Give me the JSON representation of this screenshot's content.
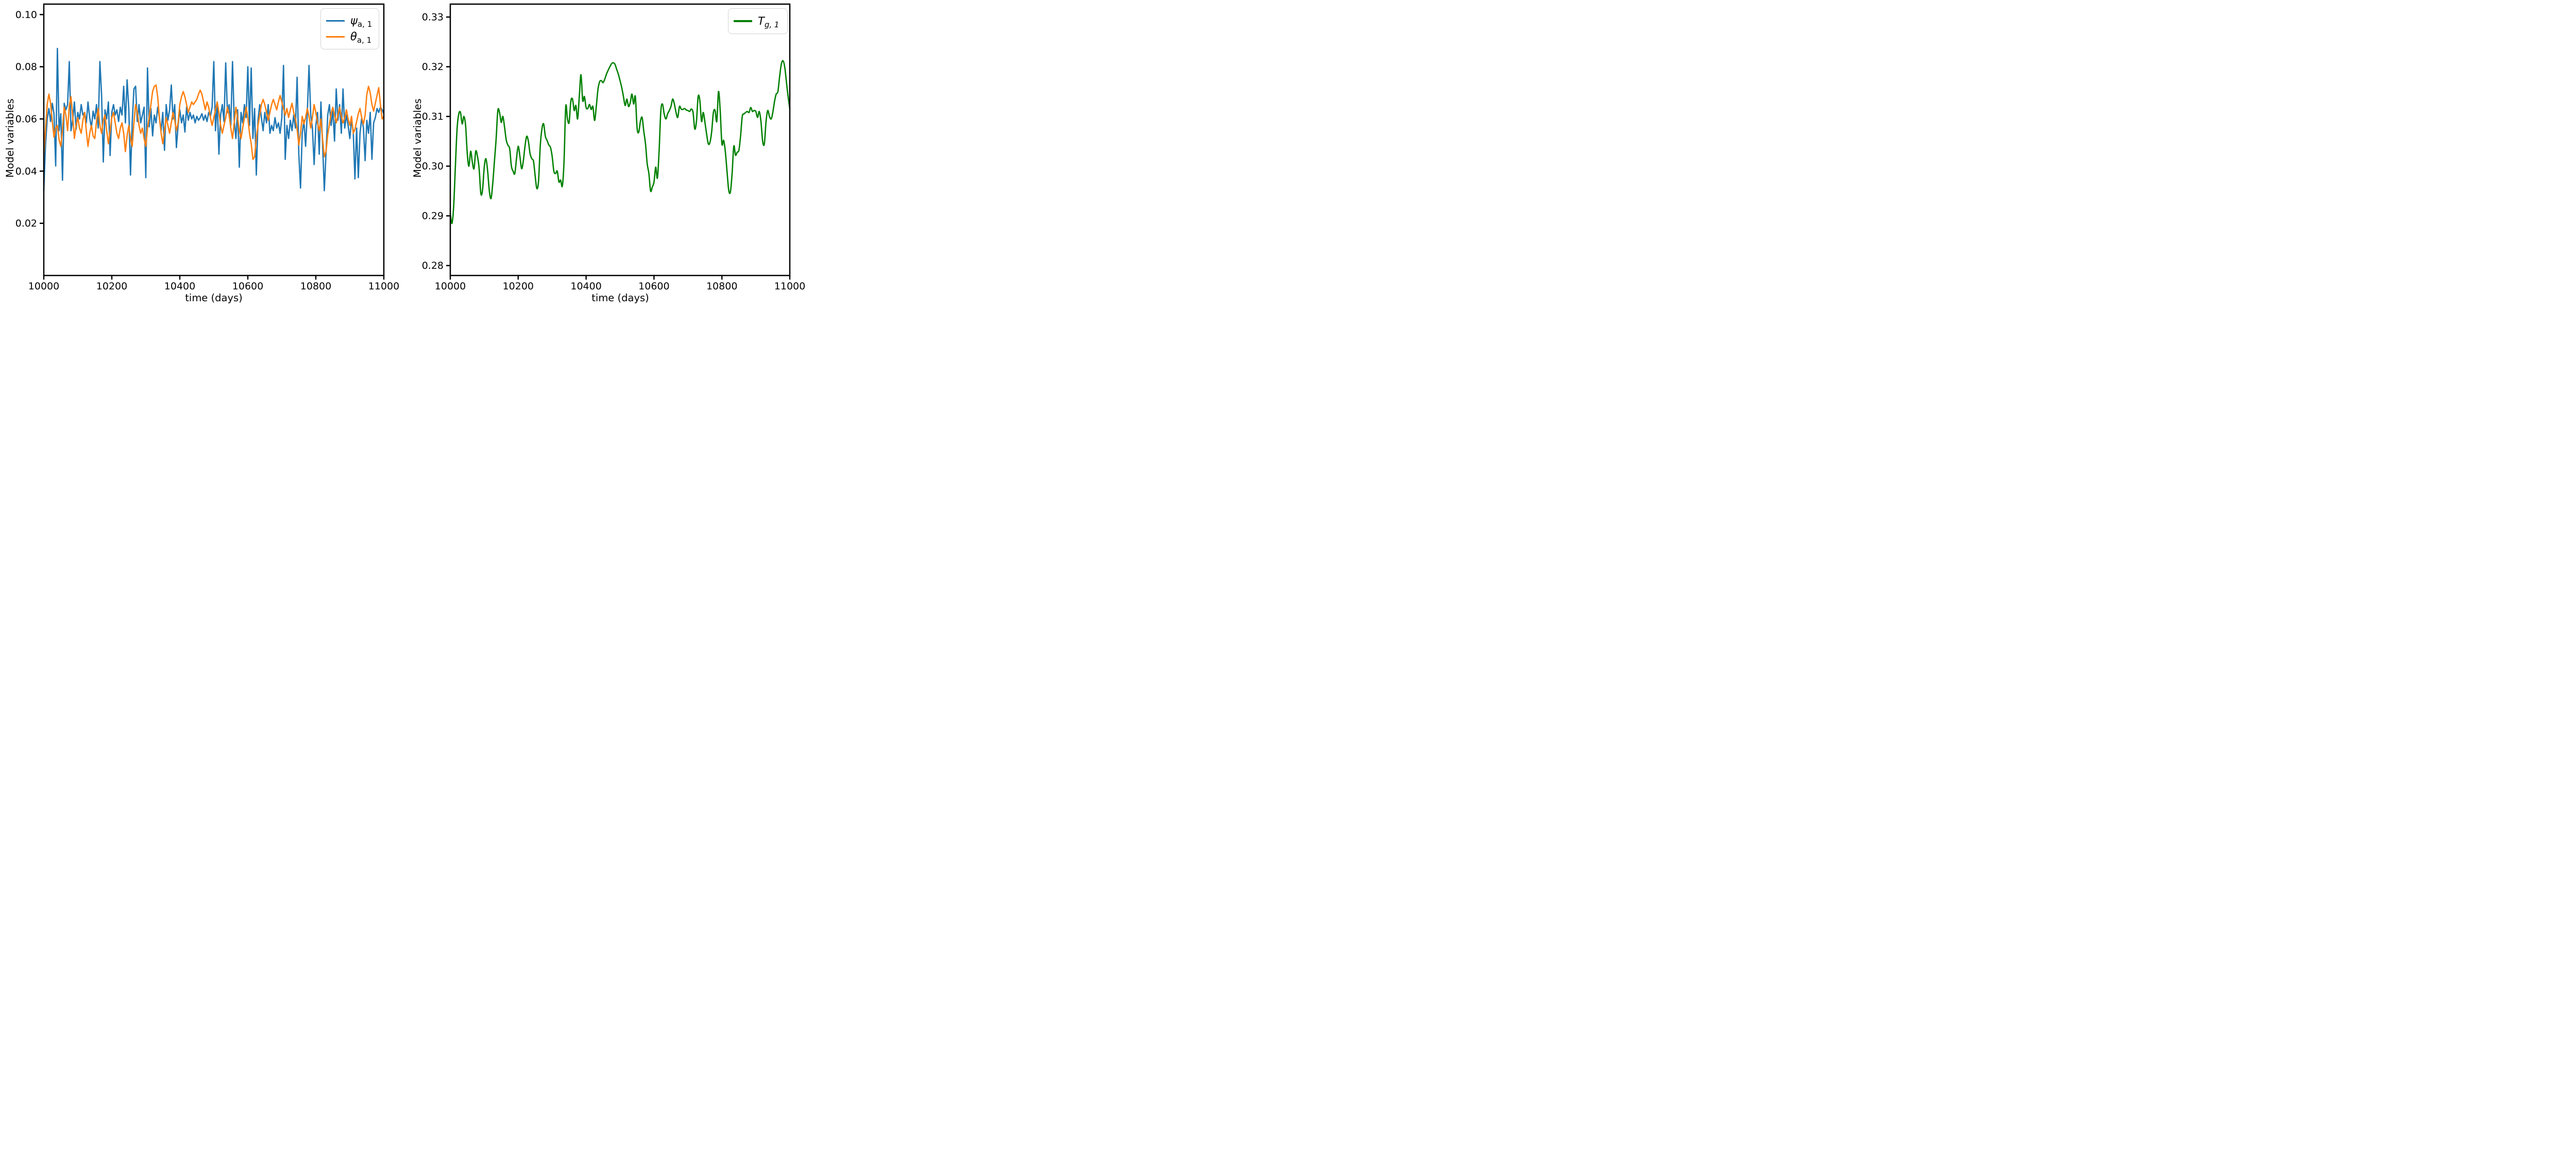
{
  "figure": {
    "background": "#ffffff",
    "text_color": "#000000",
    "axis_color": "#000000"
  },
  "chart_data": [
    {
      "type": "line",
      "id": "left-chart",
      "title": "",
      "xlabel": "time (days)",
      "ylabel": "Model variables",
      "xlim": [
        10000,
        11000
      ],
      "ylim": [
        0.0,
        0.104
      ],
      "grid": false,
      "xticks": [
        10000,
        10200,
        10400,
        10600,
        10800,
        11000
      ],
      "xtick_labels": [
        "10000",
        "10200",
        "10400",
        "10600",
        "10800",
        "11000"
      ],
      "yticks": [
        0.02,
        0.04,
        0.06,
        0.08,
        0.1
      ],
      "ytick_labels": [
        "0.02",
        "0.04",
        "0.06",
        "0.08",
        "0.10"
      ],
      "legend": {
        "position": "upper right",
        "entries": [
          {
            "symbol": "ψ",
            "subscript": "a, 1",
            "series": "psi_a_1"
          },
          {
            "symbol": "θ",
            "subscript": "a, 1",
            "series": "theta_a_1"
          }
        ]
      },
      "x_start": 10000,
      "x_step": 5,
      "series": [
        {
          "name": "psi_a_1",
          "color": "#1f77b4",
          "smooth": false,
          "y": [
            0.0325,
            0.05,
            0.06,
            0.064,
            0.059,
            0.066,
            0.062,
            0.042,
            0.087,
            0.0555,
            0.062,
            0.0365,
            0.066,
            0.0635,
            0.0655,
            0.082,
            0.0555,
            0.0595,
            0.0665,
            0.056,
            0.0625,
            0.06,
            0.0655,
            0.0615,
            0.0625,
            0.0585,
            0.0665,
            0.0605,
            0.0565,
            0.063,
            0.06,
            0.0655,
            0.0565,
            0.082,
            0.069,
            0.0435,
            0.0635,
            0.06,
            0.0665,
            0.046,
            0.0625,
            0.0655,
            0.0615,
            0.0635,
            0.059,
            0.0645,
            0.0615,
            0.0725,
            0.0585,
            0.075,
            0.064,
            0.0385,
            0.0585,
            0.0715,
            0.0725,
            0.059,
            0.0655,
            0.0585,
            0.0615,
            0.0645,
            0.0375,
            0.0795,
            0.057,
            0.064,
            0.0535,
            0.0615,
            0.0585,
            0.0645,
            0.0605,
            0.0555,
            0.0625,
            0.048,
            0.0655,
            0.0595,
            0.0635,
            0.073,
            0.06,
            0.0655,
            0.049,
            0.0575,
            0.0635,
            0.0585,
            0.0615,
            0.055,
            0.0645,
            0.0595,
            0.0625,
            0.06,
            0.0615,
            0.0585,
            0.061,
            0.0595,
            0.0605,
            0.062,
            0.0595,
            0.0615,
            0.059,
            0.0625,
            0.061,
            0.0645,
            0.082,
            0.0555,
            0.0665,
            0.0465,
            0.0615,
            0.0655,
            0.059,
            0.0815,
            0.0625,
            0.0655,
            0.0575,
            0.082,
            0.0595,
            0.0525,
            0.0635,
            0.0415,
            0.0625,
            0.0585,
            0.0655,
            0.0605,
            0.08,
            0.0575,
            0.0795,
            0.0525,
            0.064,
            0.0385,
            0.0595,
            0.0655,
            0.0605,
            0.0555,
            0.0625,
            0.0585,
            0.0655,
            0.0545,
            0.0575,
            0.0555,
            0.0605,
            0.0565,
            0.0585,
            0.0545,
            0.0605,
            0.0805,
            0.0445,
            0.0575,
            0.0525,
            0.0595,
            0.0555,
            0.0615,
            0.0565,
            0.076,
            0.0465,
            0.0335,
            0.0545,
            0.0595,
            0.0495,
            0.0625,
            0.0805,
            0.0615,
            0.0565,
            0.0425,
            0.0575,
            0.0625,
            0.0465,
            0.0665,
            0.05,
            0.0325,
            0.047,
            0.0615,
            0.0655,
            0.0575,
            0.0635,
            0.0515,
            0.0715,
            0.0595,
            0.0655,
            0.0545,
            0.0715,
            0.0565,
            0.0615,
            0.0575,
            0.0525,
            0.0595,
            0.0555,
            0.037,
            0.0565,
            0.0375,
            0.0545,
            0.0605,
            0.0565,
            0.044,
            0.0595,
            0.0545,
            0.0625,
            0.0445,
            0.0585,
            0.0605,
            0.064,
            0.0625,
            0.0645,
            0.0635,
            0.062
          ]
        },
        {
          "name": "theta_a_1",
          "color": "#ff7f0e",
          "smooth": false,
          "y": [
            0.046,
            0.056,
            0.0655,
            0.0695,
            0.066,
            0.059,
            0.053,
            0.0565,
            0.0575,
            0.052,
            0.0495,
            0.056,
            0.0645,
            0.0615,
            0.0555,
            0.065,
            0.0685,
            0.061,
            0.0525,
            0.0575,
            0.0605,
            0.0565,
            0.0545,
            0.0595,
            0.0625,
            0.0555,
            0.0495,
            0.0545,
            0.0575,
            0.0535,
            0.0525,
            0.059,
            0.064,
            0.0575,
            0.0545,
            0.0595,
            0.0615,
            0.0555,
            0.0505,
            0.0555,
            0.0605,
            0.0625,
            0.0585,
            0.0545,
            0.0525,
            0.0565,
            0.0585,
            0.0545,
            0.0475,
            0.0535,
            0.0575,
            0.0525,
            0.0495,
            0.0585,
            0.0655,
            0.0625,
            0.0575,
            0.0545,
            0.0565,
            0.0525,
            0.0495,
            0.0565,
            0.0605,
            0.0655,
            0.0705,
            0.0725,
            0.073,
            0.0685,
            0.0605,
            0.0545,
            0.0505,
            0.0555,
            0.0605,
            0.0575,
            0.0545,
            0.0585,
            0.0625,
            0.0595,
            0.0555,
            0.0585,
            0.0655,
            0.0685,
            0.0705,
            0.0685,
            0.0655,
            0.0625,
            0.0645,
            0.0665,
            0.0655,
            0.0665,
            0.0675,
            0.0695,
            0.071,
            0.0695,
            0.0665,
            0.0635,
            0.0665,
            0.0645,
            0.0605,
            0.0575,
            0.0605,
            0.0635,
            0.0665,
            0.0625,
            0.0575,
            0.0545,
            0.0575,
            0.0605,
            0.0645,
            0.0615,
            0.0565,
            0.0525,
            0.0585,
            0.0645,
            0.0605,
            0.0555,
            0.0525,
            0.0565,
            0.0605,
            0.0645,
            0.0605,
            0.0545,
            0.0505,
            0.0445,
            0.0455,
            0.0525,
            0.0575,
            0.0615,
            0.0655,
            0.0675,
            0.0655,
            0.0625,
            0.0595,
            0.0625,
            0.0655,
            0.0675,
            0.0655,
            0.0635,
            0.0665,
            0.069,
            0.0665,
            0.064,
            0.0615,
            0.064,
            0.0605,
            0.0635,
            0.066,
            0.0625,
            0.06,
            0.056,
            0.05,
            0.0545,
            0.061,
            0.058,
            0.0605,
            0.064,
            0.061,
            0.0565,
            0.0605,
            0.0655,
            0.0625,
            0.0585,
            0.0555,
            0.06,
            0.052,
            0.0455,
            0.0475,
            0.054,
            0.058,
            0.062,
            0.0645,
            0.0615,
            0.0585,
            0.0615,
            0.0645,
            0.061,
            0.0585,
            0.0605,
            0.0635,
            0.06,
            0.0575,
            0.061,
            0.0545,
            0.056,
            0.059,
            0.062,
            0.064,
            0.0605,
            0.058,
            0.0615,
            0.0695,
            0.0725,
            0.07,
            0.0655,
            0.063,
            0.066,
            0.069,
            0.072,
            0.0655,
            0.06,
            0.061
          ]
        }
      ]
    },
    {
      "type": "line",
      "id": "right-chart",
      "title": "",
      "xlabel": "time (days)",
      "ylabel": "Model variables",
      "xlim": [
        10000,
        11000
      ],
      "ylim": [
        0.278,
        0.3326
      ],
      "grid": false,
      "xticks": [
        10000,
        10200,
        10400,
        10600,
        10800,
        11000
      ],
      "xtick_labels": [
        "10000",
        "10200",
        "10400",
        "10600",
        "10800",
        "11000"
      ],
      "yticks": [
        0.28,
        0.29,
        0.3,
        0.31,
        0.32,
        0.33
      ],
      "ytick_labels": [
        "0.28",
        "0.29",
        "0.30",
        "0.31",
        "0.32",
        "0.33"
      ],
      "legend": {
        "position": "upper right",
        "entries": [
          {
            "symbol": "T",
            "subscript": "g, 1",
            "series": "T_g_1"
          }
        ]
      },
      "x_start": 10000,
      "x_step": 5,
      "series": [
        {
          "name": "T_g_1",
          "color": "#008000",
          "smooth": true,
          "y": [
            0.2905,
            0.2885,
            0.292,
            0.3,
            0.3075,
            0.3105,
            0.3108,
            0.3085,
            0.31,
            0.3082,
            0.3025,
            0.3,
            0.303,
            0.3008,
            0.2995,
            0.303,
            0.302,
            0.2995,
            0.2945,
            0.2952,
            0.2998,
            0.3015,
            0.299,
            0.295,
            0.2935,
            0.2965,
            0.301,
            0.3055,
            0.3112,
            0.3108,
            0.3088,
            0.31,
            0.3078,
            0.3052,
            0.3042,
            0.3035,
            0.3,
            0.299,
            0.2985,
            0.3015,
            0.304,
            0.302,
            0.2995,
            0.301,
            0.304,
            0.306,
            0.305,
            0.3025,
            0.3015,
            0.301,
            0.298,
            0.2955,
            0.297,
            0.304,
            0.3075,
            0.3085,
            0.306,
            0.3052,
            0.3043,
            0.3038,
            0.302,
            0.299,
            0.2985,
            0.299,
            0.2968,
            0.2972,
            0.296,
            0.301,
            0.312,
            0.3095,
            0.3088,
            0.313,
            0.3135,
            0.3112,
            0.3122,
            0.3095,
            0.314,
            0.3184,
            0.3132,
            0.314,
            0.3118,
            0.3116,
            0.3124,
            0.3114,
            0.312,
            0.3092,
            0.312,
            0.3155,
            0.317,
            0.3172,
            0.3168,
            0.3175,
            0.3185,
            0.3193,
            0.32,
            0.3206,
            0.3208,
            0.3205,
            0.3195,
            0.3185,
            0.3172,
            0.3158,
            0.314,
            0.3122,
            0.3135,
            0.312,
            0.3128,
            0.3145,
            0.3125,
            0.314,
            0.3078,
            0.3068,
            0.309,
            0.3098,
            0.307,
            0.3045,
            0.3005,
            0.2985,
            0.295,
            0.2958,
            0.2968,
            0.2998,
            0.2976,
            0.303,
            0.311,
            0.3125,
            0.3105,
            0.3095,
            0.3105,
            0.3112,
            0.312,
            0.3135,
            0.3125,
            0.3108,
            0.3098,
            0.312,
            0.3115,
            0.3114,
            0.3116,
            0.3113,
            0.3112,
            0.311,
            0.3115,
            0.3108,
            0.3075,
            0.309,
            0.314,
            0.3132,
            0.309,
            0.3108,
            0.3088,
            0.3065,
            0.3045,
            0.3048,
            0.307,
            0.3108,
            0.3112,
            0.309,
            0.315,
            0.3112,
            0.3045,
            0.3052,
            0.303,
            0.299,
            0.2952,
            0.2948,
            0.2985,
            0.304,
            0.3022,
            0.3028,
            0.3032,
            0.306,
            0.31,
            0.3105,
            0.3108,
            0.311,
            0.3108,
            0.3118,
            0.311,
            0.3112,
            0.311,
            0.3098,
            0.311,
            0.309,
            0.305,
            0.3045,
            0.309,
            0.3112,
            0.31,
            0.3095,
            0.3108,
            0.313,
            0.3145,
            0.315,
            0.318,
            0.3205,
            0.3212,
            0.32,
            0.317,
            0.314,
            0.3115
          ]
        }
      ]
    }
  ]
}
